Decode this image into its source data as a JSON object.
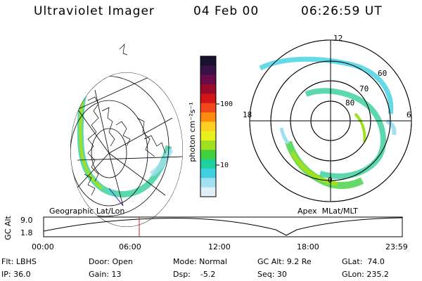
{
  "header": {
    "instrument": "Ultraviolet Imager",
    "date": "04 Feb 00",
    "time": "06:26:59 UT"
  },
  "colorbar": {
    "unit_label": "photon cm⁻²s⁻¹",
    "ticks": [
      "100",
      "10"
    ],
    "colors": [
      "#1a1030",
      "#3a1048",
      "#6a0a48",
      "#9a0a2a",
      "#d0141a",
      "#f0481a",
      "#ff8a10",
      "#ffd020",
      "#e8f020",
      "#a0e020",
      "#40d040",
      "#20d0a0",
      "#40d0e0",
      "#a0e0f0",
      "#e0f0f8"
    ]
  },
  "geo_panel": {
    "label": "Geographic Lat/Lon"
  },
  "polar_panel": {
    "label": "Apex  MLat/MLT",
    "mlt_labels": {
      "top": "12",
      "left": "18",
      "right": "6",
      "bottom": "0"
    },
    "lat_labels": [
      "60",
      "70",
      "80"
    ]
  },
  "alt_strip": {
    "axis_label": "GC Alt",
    "y_ticks": [
      "9.0",
      "1.8"
    ],
    "x_ticks": [
      "00:00",
      "06:00",
      "12:00",
      "18:00",
      "23:59"
    ]
  },
  "footer": {
    "flt": "Flt: LBHS",
    "ip": "IP: 36.0",
    "door": "Door: Open",
    "gain": "Gain: 13",
    "mode": "Mode: Normal",
    "dsp": "Dsp:    -5.2",
    "gcalt": "GC Alt: 9.2 Re",
    "seq": "Seq: 30",
    "glat": "GLat:  74.0",
    "glon": "GLon: 235.2"
  }
}
